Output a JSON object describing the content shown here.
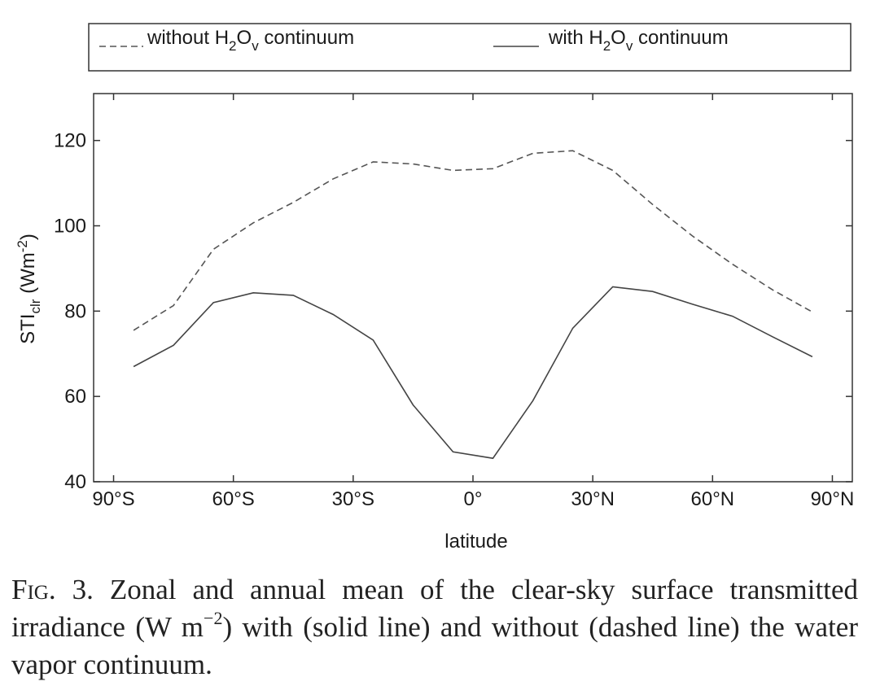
{
  "chart_data": {
    "type": "line",
    "xlabel": "latitude",
    "ylabel": {
      "base": "STI",
      "sub": "clr",
      "unit_open": " (Wm",
      "unit_sup": "-2",
      "unit_close": ")"
    },
    "xlim": [
      -95,
      95
    ],
    "ylim": [
      40,
      131
    ],
    "x_ticks": [
      -90,
      -60,
      -30,
      0,
      30,
      60,
      90
    ],
    "x_tick_labels": [
      "90°S",
      "60°S",
      "30°S",
      "0°",
      "30°N",
      "60°N",
      "90°N"
    ],
    "y_ticks": [
      40,
      60,
      80,
      100,
      120
    ],
    "y_tick_labels": [
      "40",
      "60",
      "80",
      "100",
      "120"
    ],
    "grid": false,
    "legend": {
      "placement": "top",
      "entries": [
        {
          "style": "dashed",
          "prefix": "without H",
          "sub1": "2",
          "mid": "O",
          "sub2": "v",
          "suffix": " continuum"
        },
        {
          "style": "solid",
          "prefix": "with H",
          "sub1": "2",
          "mid": "O",
          "sub2": "v",
          "suffix": " continuum"
        }
      ]
    },
    "series": [
      {
        "style": "dashed",
        "x": [
          -85,
          -75,
          -65,
          -55,
          -45,
          -35,
          -25,
          -15,
          -5,
          5,
          15,
          25,
          35,
          45,
          55,
          65,
          75,
          85
        ],
        "y": [
          75.5,
          81.3,
          94.5,
          100.7,
          105.5,
          111,
          115,
          114.5,
          113,
          113.4,
          117,
          117.6,
          113,
          105,
          97.6,
          91,
          85,
          79.8
        ]
      },
      {
        "style": "solid",
        "x": [
          -85,
          -75,
          -65,
          -55,
          -45,
          -35,
          -25,
          -15,
          -5,
          5,
          15,
          25,
          35,
          45,
          55,
          65,
          75,
          85
        ],
        "y": [
          67,
          72,
          82,
          84.3,
          83.7,
          79.2,
          73.2,
          58,
          47,
          45.5,
          59,
          76,
          85.7,
          84.6,
          81.6,
          78.8,
          74,
          69.3
        ]
      }
    ]
  },
  "caption": {
    "fig_label": "Fig. 3.",
    "text_before_sup": " Zonal and annual mean of the clear-sky surface transmitted irradiance (W m",
    "sup": "−2",
    "text_after_sup": ") with (solid line) and without (dashed line) the water vapor continuum."
  }
}
